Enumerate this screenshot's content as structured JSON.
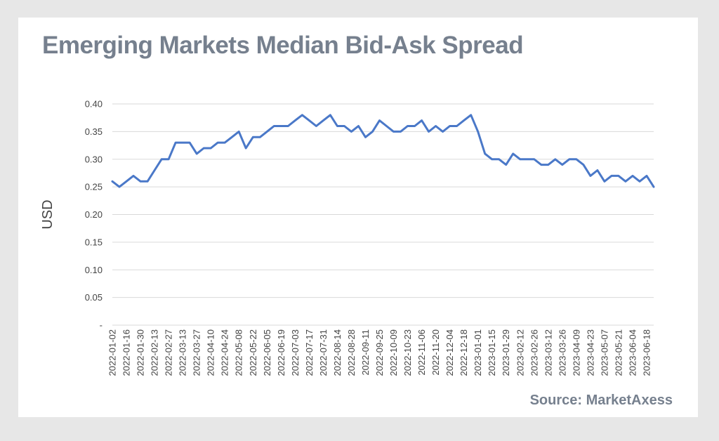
{
  "page": {
    "title": "Emerging Markets Median Bid-Ask Spread",
    "source": "Source: MarketAxess"
  },
  "colors": {
    "background": "#e7e7e7",
    "card": "#ffffff",
    "title": "#76808e",
    "line": "#4a78c8",
    "grid": "#d9d9d9"
  },
  "chart_data": {
    "type": "line",
    "title": "Emerging Markets Median Bid-Ask Spread",
    "xlabel": "",
    "ylabel": "USD",
    "ylim": [
      0,
      0.4
    ],
    "yticks": [
      {
        "value": 0,
        "label": "-"
      },
      {
        "value": 0.05,
        "label": "0.05"
      },
      {
        "value": 0.1,
        "label": "0.10"
      },
      {
        "value": 0.15,
        "label": "0.15"
      },
      {
        "value": 0.2,
        "label": "0.20"
      },
      {
        "value": 0.25,
        "label": "0.25"
      },
      {
        "value": 0.3,
        "label": "0.30"
      },
      {
        "value": 0.35,
        "label": "0.35"
      },
      {
        "value": 0.4,
        "label": "0.40"
      }
    ],
    "grid": true,
    "legend": "none",
    "xtick_labels": [
      "2022-01-02",
      "2022-01-16",
      "2022-01-30",
      "2022-02-13",
      "2022-02-27",
      "2022-03-13",
      "2022-03-27",
      "2022-04-10",
      "2022-04-24",
      "2022-05-08",
      "2022-05-22",
      "2022-06-05",
      "2022-06-19",
      "2022-07-03",
      "2022-07-17",
      "2022-07-31",
      "2022-08-14",
      "2022-08-28",
      "2022-09-11",
      "2022-09-25",
      "2022-10-09",
      "2022-10-23",
      "2022-11-06",
      "2022-11-20",
      "2022-12-04",
      "2022-12-18",
      "2023-01-01",
      "2023-01-15",
      "2023-01-29",
      "2023-02-12",
      "2023-02-26",
      "2023-03-12",
      "2023-03-26",
      "2023-04-09",
      "2023-04-23",
      "2023-05-07",
      "2023-05-21",
      "2023-06-04",
      "2023-06-18"
    ],
    "x": [
      "2022-01-02",
      "2022-01-09",
      "2022-01-16",
      "2022-01-23",
      "2022-01-30",
      "2022-02-06",
      "2022-02-13",
      "2022-02-20",
      "2022-02-27",
      "2022-03-06",
      "2022-03-13",
      "2022-03-20",
      "2022-03-27",
      "2022-04-03",
      "2022-04-10",
      "2022-04-17",
      "2022-04-24",
      "2022-05-01",
      "2022-05-08",
      "2022-05-15",
      "2022-05-22",
      "2022-05-29",
      "2022-06-05",
      "2022-06-12",
      "2022-06-19",
      "2022-06-26",
      "2022-07-03",
      "2022-07-10",
      "2022-07-17",
      "2022-07-24",
      "2022-07-31",
      "2022-08-07",
      "2022-08-14",
      "2022-08-21",
      "2022-08-28",
      "2022-09-04",
      "2022-09-11",
      "2022-09-18",
      "2022-09-25",
      "2022-10-02",
      "2022-10-09",
      "2022-10-16",
      "2022-10-23",
      "2022-10-30",
      "2022-11-06",
      "2022-11-13",
      "2022-11-20",
      "2022-11-27",
      "2022-12-04",
      "2022-12-11",
      "2022-12-18",
      "2022-12-25",
      "2023-01-01",
      "2023-01-08",
      "2023-01-15",
      "2023-01-22",
      "2023-01-29",
      "2023-02-05",
      "2023-02-12",
      "2023-02-19",
      "2023-02-26",
      "2023-03-05",
      "2023-03-12",
      "2023-03-19",
      "2023-03-26",
      "2023-04-02",
      "2023-04-09",
      "2023-04-16",
      "2023-04-23",
      "2023-04-30",
      "2023-05-07",
      "2023-05-14",
      "2023-05-21",
      "2023-05-28",
      "2023-06-04",
      "2023-06-11",
      "2023-06-18",
      "2023-06-25"
    ],
    "series": [
      {
        "values": [
          0.26,
          0.25,
          0.26,
          0.27,
          0.26,
          0.26,
          0.28,
          0.3,
          0.3,
          0.33,
          0.33,
          0.33,
          0.31,
          0.32,
          0.32,
          0.33,
          0.33,
          0.34,
          0.35,
          0.32,
          0.34,
          0.34,
          0.35,
          0.36,
          0.36,
          0.36,
          0.37,
          0.38,
          0.37,
          0.36,
          0.37,
          0.38,
          0.36,
          0.36,
          0.35,
          0.36,
          0.34,
          0.35,
          0.37,
          0.36,
          0.35,
          0.35,
          0.36,
          0.36,
          0.37,
          0.35,
          0.36,
          0.35,
          0.36,
          0.36,
          0.37,
          0.38,
          0.35,
          0.31,
          0.3,
          0.3,
          0.29,
          0.31,
          0.3,
          0.3,
          0.3,
          0.29,
          0.29,
          0.3,
          0.29,
          0.3,
          0.3,
          0.29,
          0.27,
          0.28,
          0.26,
          0.27,
          0.27,
          0.26,
          0.27,
          0.26,
          0.27,
          0.25
        ]
      }
    ]
  }
}
